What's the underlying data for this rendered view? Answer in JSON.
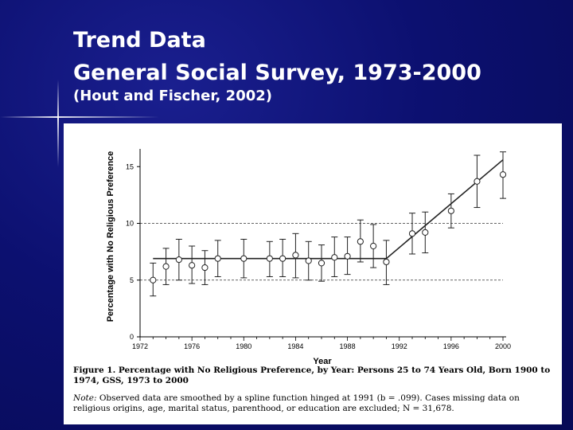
{
  "slide": {
    "title_line1": "Trend Data",
    "title_line2": "General Social Survey, 1973-2000",
    "subtitle": "(Hout and Fischer, 2002)"
  },
  "colors": {
    "background": "#0c1070",
    "title_text": "#ffffff",
    "panel": "#ffffff"
  },
  "caption": {
    "figure_title": "Figure 1. Percentage with No Religious Preference, by Year: Persons 25 to 74 Years Old, Born 1900 to 1974, GSS, 1973 to 2000",
    "note_label": "Note:",
    "note_text": "Observed data are smoothed by a spline function hinged at 1991 (b = .099). Cases missing data on religious origins, age, marital status, parenthood, or education are excluded; N = 31,678."
  },
  "chart_data": {
    "type": "scatter",
    "ylabel": "Percentage with No Religious Preference",
    "xlabel": "Year",
    "xlim": [
      1972,
      2000
    ],
    "ylim": [
      0,
      16
    ],
    "x_ticks": [
      1972,
      1976,
      1980,
      1984,
      1988,
      1992,
      1996,
      2000
    ],
    "y_ticks": [
      0,
      5,
      10,
      15
    ],
    "reference_lines_y": [
      5,
      10
    ],
    "series": [
      {
        "kind": "observed",
        "x": [
          1973,
          1974,
          1975,
          1976,
          1977,
          1978,
          1980,
          1982,
          1983,
          1984,
          1985,
          1986,
          1987,
          1988,
          1989,
          1990,
          1991,
          1993,
          1994,
          1996,
          1998,
          2000
        ],
        "y": [
          5.0,
          6.2,
          6.8,
          6.3,
          6.1,
          6.9,
          6.9,
          6.9,
          6.9,
          7.2,
          6.7,
          6.5,
          7.0,
          7.1,
          8.4,
          8.0,
          6.6,
          9.1,
          9.2,
          11.1,
          13.7,
          14.3
        ],
        "err_low": [
          3.6,
          4.6,
          5.0,
          4.7,
          4.6,
          5.3,
          5.2,
          5.3,
          5.3,
          5.2,
          5.0,
          4.9,
          5.3,
          5.5,
          6.6,
          6.1,
          4.6,
          7.3,
          7.4,
          9.6,
          11.4,
          12.2
        ],
        "err_high": [
          6.5,
          7.8,
          8.6,
          8.0,
          7.6,
          8.5,
          8.6,
          8.4,
          8.6,
          9.1,
          8.4,
          8.1,
          8.8,
          8.8,
          10.3,
          9.9,
          8.5,
          10.9,
          11.0,
          12.6,
          16.0,
          16.3
        ]
      },
      {
        "kind": "spline_fit",
        "x": [
          1973,
          1991,
          2000
        ],
        "y": [
          6.9,
          6.9,
          15.6
        ]
      }
    ]
  }
}
